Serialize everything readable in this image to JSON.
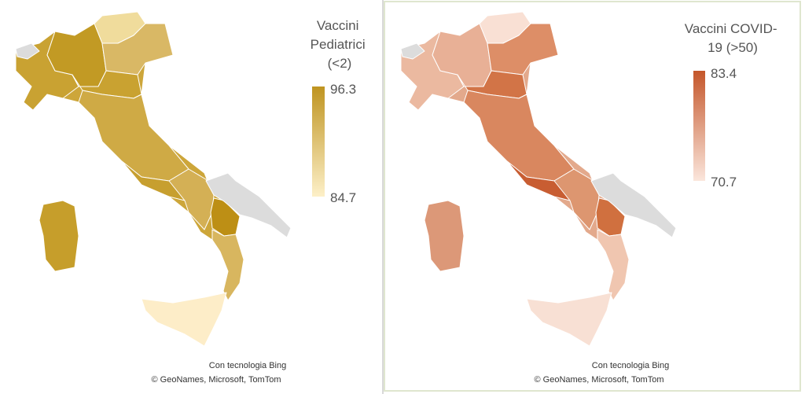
{
  "panels": [
    {
      "legend": {
        "title": [
          "Vaccini",
          "Pediatrici",
          "(<2)"
        ],
        "max": 96.3,
        "min": 84.7
      },
      "attribution": [
        "Con tecnologia Bing",
        "© GeoNames, Microsoft, TomTom"
      ]
    },
    {
      "legend": {
        "title": [
          "Vaccini COVID-",
          "19 (>50)"
        ],
        "max": 83.4,
        "min": 70.7
      },
      "attribution": [
        "Con tecnologia Bing",
        "© GeoNames, Microsoft, TomTom"
      ]
    }
  ]
}
